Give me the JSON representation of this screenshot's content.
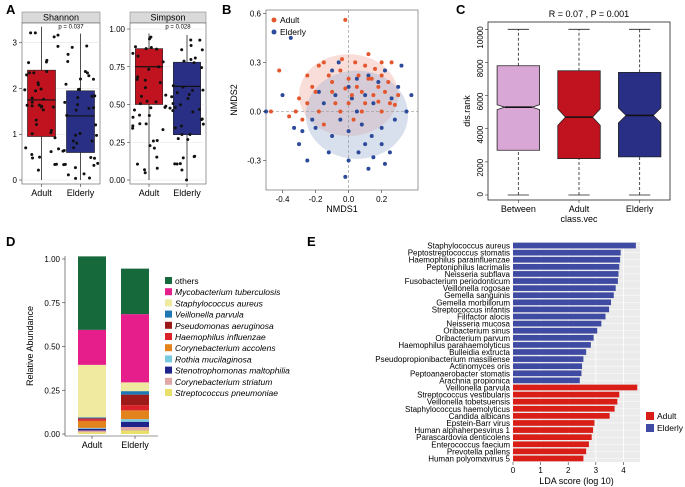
{
  "colors": {
    "adult": "#c1121f",
    "elderly": "#2a2f86",
    "between": "#d9a7d6",
    "adult_point": "#e4572e",
    "elderly_point": "#2c4a9a",
    "lda_adult": "#d91e18",
    "lda_elderly": "#3f4aa3"
  },
  "chart_data": [
    {
      "panel": "A",
      "type": "box",
      "facets": [
        {
          "strip": "Shannon",
          "pvalue": "p = 0.037",
          "ylim": [
            0,
            3.3
          ],
          "yticks": [
            "0",
            "1",
            "2",
            "3"
          ],
          "tick_values": [
            0,
            1,
            2,
            3
          ],
          "groups": [
            {
              "name": "Adult",
              "q1": 0.95,
              "median": 1.75,
              "q3": 2.4,
              "lo": 0,
              "hi": 3.35
            },
            {
              "name": "Elderly",
              "q1": 0.6,
              "median": 1.4,
              "q3": 1.95,
              "lo": 0,
              "hi": 3.2
            }
          ]
        },
        {
          "strip": "Simpson",
          "pvalue": "p = 0.028",
          "ylim": [
            0,
            1.0
          ],
          "yticks": [
            "0.00",
            "0.25",
            "0.50",
            "0.75",
            "1.00"
          ],
          "tick_values": [
            0,
            0.25,
            0.5,
            0.75,
            1.0
          ],
          "groups": [
            {
              "name": "Adult",
              "q1": 0.5,
              "median": 0.75,
              "q3": 0.87,
              "lo": 0,
              "hi": 0.97
            },
            {
              "name": "Elderly",
              "q1": 0.3,
              "median": 0.62,
              "q3": 0.78,
              "lo": 0,
              "hi": 0.96
            }
          ]
        }
      ]
    },
    {
      "panel": "B",
      "type": "scatter",
      "xlabel": "NMDS1",
      "ylabel": "NMDS2",
      "xticks": [
        "-0.4",
        "-0.2",
        "0.0",
        "0.2"
      ],
      "xtick_values": [
        -0.4,
        -0.2,
        0.0,
        0.2
      ],
      "yticks": [
        "-0.3",
        "0.0",
        "0.3",
        "0.6"
      ],
      "ytick_values": [
        -0.3,
        0.0,
        0.3,
        0.6
      ],
      "xlim": [
        -0.5,
        0.42
      ],
      "ylim": [
        -0.48,
        0.62
      ],
      "legend": [
        "Adult",
        "Elderly"
      ],
      "ellipses": [
        {
          "group": "Adult",
          "cx": 0.0,
          "cy": 0.1,
          "rx": 0.3,
          "ry": 0.25
        },
        {
          "group": "Elderly",
          "cx": 0.05,
          "cy": -0.02,
          "rx": 0.31,
          "ry": 0.27
        }
      ],
      "points_adult": [
        [
          -0.02,
          0.56
        ],
        [
          -0.47,
          0.0
        ],
        [
          -0.42,
          0.25
        ],
        [
          -0.3,
          0.08
        ],
        [
          -0.25,
          0.22
        ],
        [
          -0.2,
          0.12
        ],
        [
          -0.15,
          0.3
        ],
        [
          -0.1,
          0.18
        ],
        [
          -0.05,
          0.25
        ],
        [
          0.0,
          0.2
        ],
        [
          0.05,
          0.15
        ],
        [
          0.1,
          0.28
        ],
        [
          0.15,
          0.1
        ],
        [
          0.2,
          0.22
        ],
        [
          0.25,
          0.05
        ],
        [
          0.12,
          0.35
        ],
        [
          0.02,
          0.1
        ],
        [
          -0.08,
          0.05
        ],
        [
          -0.18,
          0.0
        ],
        [
          -0.28,
          -0.05
        ],
        [
          0.08,
          0.0
        ],
        [
          0.18,
          0.15
        ],
        [
          -0.12,
          0.22
        ],
        [
          0.22,
          0.12
        ],
        [
          0.04,
          0.3
        ],
        [
          -0.02,
          0.14
        ],
        [
          0.14,
          0.2
        ],
        [
          -0.22,
          0.15
        ],
        [
          0.3,
          0.1
        ],
        [
          0.06,
          0.22
        ],
        [
          -0.32,
          0.0
        ],
        [
          -0.15,
          -0.08
        ],
        [
          0.1,
          0.05
        ],
        [
          0.2,
          0.0
        ],
        [
          -0.05,
          0.0
        ],
        [
          0.16,
          0.26
        ],
        [
          0.24,
          0.18
        ],
        [
          -0.1,
          0.12
        ],
        [
          0.0,
          0.05
        ],
        [
          0.08,
          0.12
        ],
        [
          -0.36,
          -0.03
        ],
        [
          0.26,
          0.3
        ],
        [
          -0.25,
          0.05
        ],
        [
          0.12,
          0.2
        ],
        [
          0.18,
          0.06
        ],
        [
          0.03,
          -0.05
        ],
        [
          -0.04,
          0.32
        ],
        [
          0.28,
          0.04
        ],
        [
          0.2,
          0.3
        ],
        [
          -0.18,
          0.28
        ]
      ],
      "points_elderly": [
        [
          -0.35,
          0.45
        ],
        [
          -0.5,
          0.0
        ],
        [
          -0.3,
          -0.2
        ],
        [
          -0.2,
          -0.1
        ],
        [
          -0.1,
          -0.15
        ],
        [
          0.0,
          -0.3
        ],
        [
          0.1,
          -0.2
        ],
        [
          0.2,
          -0.1
        ],
        [
          0.3,
          0.15
        ],
        [
          0.25,
          -0.25
        ],
        [
          0.15,
          0.05
        ],
        [
          0.05,
          0.0
        ],
        [
          -0.05,
          -0.05
        ],
        [
          0.12,
          -0.35
        ],
        [
          0.22,
          0.25
        ],
        [
          -0.15,
          0.05
        ],
        [
          -0.25,
          -0.3
        ],
        [
          0.35,
          0.0
        ],
        [
          -0.4,
          0.1
        ],
        [
          0.0,
          0.15
        ],
        [
          0.18,
          0.18
        ],
        [
          -0.08,
          0.1
        ],
        [
          0.28,
          -0.05
        ],
        [
          0.08,
          -0.08
        ],
        [
          -0.22,
          -0.05
        ],
        [
          0.15,
          -0.28
        ],
        [
          -0.12,
          -0.25
        ],
        [
          0.05,
          0.2
        ],
        [
          0.32,
          0.28
        ],
        [
          -0.02,
          -0.4
        ],
        [
          0.1,
          0.1
        ],
        [
          0.2,
          -0.2
        ],
        [
          -0.18,
          0.12
        ],
        [
          0.26,
          0.08
        ],
        [
          0.0,
          -0.12
        ],
        [
          0.14,
          -0.15
        ],
        [
          -0.28,
          -0.12
        ],
        [
          0.06,
          -0.25
        ],
        [
          0.22,
          -0.32
        ],
        [
          -0.06,
          0.3
        ],
        [
          0.38,
          0.1
        ],
        [
          0.12,
          0.22
        ],
        [
          -0.33,
          -0.1
        ],
        [
          0.02,
          0.08
        ],
        [
          -0.1,
          0.25
        ]
      ]
    },
    {
      "panel": "C",
      "type": "box",
      "stat": "R = 0.07 , P = 0.001",
      "ylabel": "dis.rank",
      "xlabel": "class.vec",
      "ylim": [
        0,
        10200
      ],
      "yticks": [
        "0",
        "2000",
        "4000",
        "6000",
        "8000",
        "10000"
      ],
      "tick_values": [
        0,
        2000,
        4000,
        6000,
        8000,
        10000
      ],
      "groups": [
        {
          "name": "Between",
          "q1": 2700,
          "median": 5300,
          "q3": 7800,
          "lo": 0,
          "hi": 10000,
          "notch": 150
        },
        {
          "name": "Adult",
          "q1": 2200,
          "median": 4700,
          "q3": 7500,
          "lo": 0,
          "hi": 10000,
          "notch": 500
        },
        {
          "name": "Elderly",
          "q1": 2300,
          "median": 4800,
          "q3": 7400,
          "lo": 0,
          "hi": 10000,
          "notch": 450
        }
      ]
    },
    {
      "panel": "D",
      "type": "stacked_bar",
      "ylabel": "Relative Abundance",
      "categories": [
        "Adult",
        "Elderly"
      ],
      "yticks": [
        "0.00",
        "0.25",
        "0.50",
        "0.75",
        "1.00"
      ],
      "tick_values": [
        0,
        0.25,
        0.5,
        0.75,
        1.0
      ],
      "series": [
        {
          "name": "Streptococcus pneumoniae",
          "color": "#e9e06a",
          "values": [
            0.01,
            0.02
          ]
        },
        {
          "name": "Corynebacterium striatum",
          "color": "#e0a7a7",
          "values": [
            0.01,
            0.02
          ]
        },
        {
          "name": "Stenotrophomonas maltophilia",
          "color": "#20248a",
          "values": [
            0.01,
            0.03
          ]
        },
        {
          "name": "Rothia mucilaginosa",
          "color": "#76c9df",
          "values": [
            0.005,
            0.015
          ]
        },
        {
          "name": "Corynebacterium accolens",
          "color": "#e3831d",
          "values": [
            0.04,
            0.05
          ]
        },
        {
          "name": "Haemophilus influenzae",
          "color": "#d92229",
          "values": [
            0.01,
            0.03
          ]
        },
        {
          "name": "Pseudomonas aeruginosa",
          "color": "#9c1a1a",
          "values": [
            0.005,
            0.06
          ]
        },
        {
          "name": "Veillonella parvula",
          "color": "#1f77b4",
          "values": [
            0.005,
            0.02
          ]
        },
        {
          "name": "Staphylococcus aureus",
          "color": "#f0eaa0",
          "values": [
            0.3,
            0.05
          ]
        },
        {
          "name": "Mycobacterium tuberculosis",
          "color": "#e61e8c",
          "values": [
            0.2,
            0.39
          ]
        },
        {
          "name": "others",
          "color": "#16693b",
          "values": [
            0.42,
            0.26
          ]
        }
      ],
      "legend": [
        "others",
        "Mycobacterium tuberculosis",
        "Staphylococcus aureus",
        "Veillonella parvula",
        "Pseudomonas aeruginosa",
        "Haemophilus influenzae",
        "Corynebacterium accolens",
        "Rothia mucilaginosa",
        "Stenotrophomonas maltophilia",
        "Corynebacterium striatum",
        "Streptococcus pneumoniae"
      ]
    },
    {
      "panel": "E",
      "type": "bar",
      "orientation": "horizontal",
      "xlabel": "LDA score (log 10)",
      "xlim": [
        0,
        4.6
      ],
      "xticks": [
        "0",
        "1",
        "2",
        "3",
        "4"
      ],
      "tick_values": [
        0,
        1,
        2,
        3,
        4
      ],
      "legend": [
        "Adult",
        "Elderly"
      ],
      "bars": [
        {
          "name": "Staphylococcus aureus",
          "group": "Elderly",
          "value": 4.45
        },
        {
          "name": "Peptostreptococcus stomatis",
          "group": "Elderly",
          "value": 3.9
        },
        {
          "name": "Haemophilus parainfluenzae",
          "group": "Elderly",
          "value": 3.88
        },
        {
          "name": "Peptoniphilus lacrimalis",
          "group": "Elderly",
          "value": 3.85
        },
        {
          "name": "Neisseria subflava",
          "group": "Elderly",
          "value": 3.82
        },
        {
          "name": "Fusobacterium periodonticum",
          "group": "Elderly",
          "value": 3.8
        },
        {
          "name": "Veillonella rogosae",
          "group": "Elderly",
          "value": 3.72
        },
        {
          "name": "Gemella sanguinis",
          "group": "Elderly",
          "value": 3.65
        },
        {
          "name": "Gemella morbillorum",
          "group": "Elderly",
          "value": 3.55
        },
        {
          "name": "Streptococcus infantis",
          "group": "Elderly",
          "value": 3.48
        },
        {
          "name": "Filifactor alocis",
          "group": "Elderly",
          "value": 3.35
        },
        {
          "name": "Neisseria mucosa",
          "group": "Elderly",
          "value": 3.2
        },
        {
          "name": "Oribacterium sinus",
          "group": "Elderly",
          "value": 3.05
        },
        {
          "name": "Oribacterium parvum",
          "group": "Elderly",
          "value": 2.92
        },
        {
          "name": "Haemophilus parahaemolyticus",
          "group": "Elderly",
          "value": 2.82
        },
        {
          "name": "Bulleidia extructa",
          "group": "Elderly",
          "value": 2.65
        },
        {
          "name": "Pseudopropionibacterium massiliense",
          "group": "Elderly",
          "value": 2.55
        },
        {
          "name": "Actinomyces oris",
          "group": "Elderly",
          "value": 2.5
        },
        {
          "name": "Peptoanaerobacter stomatis",
          "group": "Elderly",
          "value": 2.48
        },
        {
          "name": "Arachnia propionica",
          "group": "Elderly",
          "value": 2.42
        },
        {
          "name": "Veillonella parvula",
          "group": "Adult",
          "value": 4.5
        },
        {
          "name": "Streptococcus vestibularis",
          "group": "Adult",
          "value": 3.85
        },
        {
          "name": "Veillonella tobetsuensis",
          "group": "Adult",
          "value": 3.78
        },
        {
          "name": "Staphylococcus haemolyticus",
          "group": "Adult",
          "value": 3.68
        },
        {
          "name": "Candida albicans",
          "group": "Adult",
          "value": 3.5
        },
        {
          "name": "Epstein-Barr virus",
          "group": "Adult",
          "value": 2.95
        },
        {
          "name": "Human alphaherpesvirus 1",
          "group": "Adult",
          "value": 2.9
        },
        {
          "name": "Parascardovia denticolens",
          "group": "Adult",
          "value": 2.85
        },
        {
          "name": "Enterococcus faecium",
          "group": "Adult",
          "value": 2.75
        },
        {
          "name": "Prevotella pallens",
          "group": "Adult",
          "value": 2.65
        },
        {
          "name": "Human polyomavirus 5",
          "group": "Adult",
          "value": 2.55
        }
      ]
    }
  ]
}
